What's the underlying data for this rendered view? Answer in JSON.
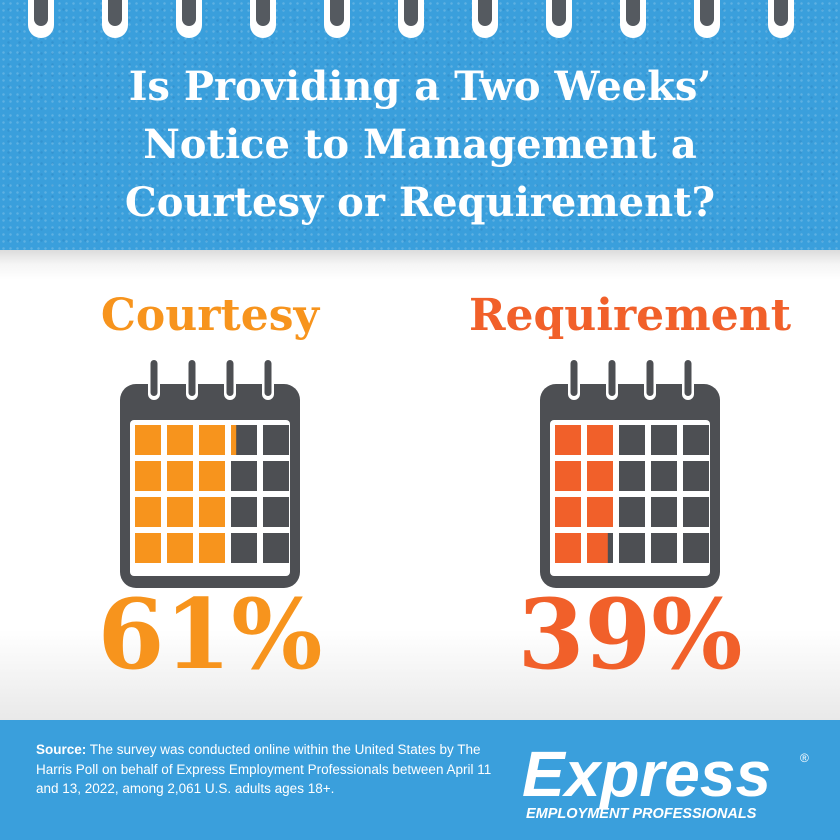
{
  "header": {
    "title_lines": [
      "Is Providing a Two Weeks’",
      "Notice to Management a",
      "Courtesy or Requirement?"
    ]
  },
  "colors": {
    "header_blue": "#3a9fdc",
    "courtesy_orange": "#f7941d",
    "requirement_orange": "#f1602a",
    "calendar_gray": "#4d4f53"
  },
  "chart_data": {
    "type": "pictogram",
    "title": "Is Providing a Two Weeks’ Notice to Management a Courtesy or Requirement?",
    "unit": "%",
    "categories": [
      "Courtesy",
      "Requirement"
    ],
    "values": [
      61,
      39
    ],
    "value_labels": [
      "61%",
      "39%"
    ],
    "grid": "5x4 calendar cells per category"
  },
  "footer": {
    "source_label": "Source:",
    "source_text": "The survey was conducted online within the United States by The Harris Poll on behalf of Express Employment Professionals between April 11 and 13, 2022, among 2,061 U.S. adults ages 18+.",
    "logo_wordmark": "Express",
    "logo_tagline": "EMPLOYMENT PROFESSIONALS"
  }
}
